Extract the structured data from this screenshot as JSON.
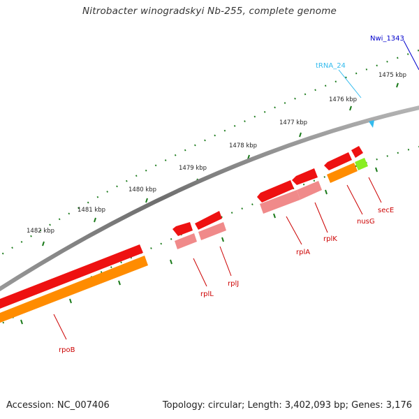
{
  "title": "Nitrobacter winogradskyi Nb-255, complete genome",
  "footer": {
    "accession": "Accession: NC_007406",
    "summary": "Topology: circular; Length: 3,402,093 bp; Genes: 3,176"
  },
  "colors": {
    "backbone": "#8a8a8a",
    "cds": "#ee1111",
    "cds_light": "#f08a8a",
    "gene": "#ff8c00",
    "gene_green": "#88ee22",
    "tick": "#1a7a1a",
    "gene_label": "#cc0000",
    "trna": "#33bbee",
    "other": "#0000cc"
  },
  "scale": {
    "ticks_kbp": [
      {
        "label": "1482 kbp",
        "kbp": 1482
      },
      {
        "label": "1481 kbp",
        "kbp": 1481
      },
      {
        "label": "1480 kbp",
        "kbp": 1480
      },
      {
        "label": "1479 kbp",
        "kbp": 1479
      },
      {
        "label": "1478 kbp",
        "kbp": 1478
      },
      {
        "label": "1477 kbp",
        "kbp": 1477
      },
      {
        "label": "1476 kbp",
        "kbp": 1476
      },
      {
        "label": "1475 kbp",
        "kbp": 1475
      }
    ]
  },
  "features": {
    "genes": [
      {
        "label": "rpoB"
      },
      {
        "label": "rplL"
      },
      {
        "label": "rplJ"
      },
      {
        "label": "rplA"
      },
      {
        "label": "rplK"
      },
      {
        "label": "nusG"
      },
      {
        "label": "secE"
      }
    ],
    "trna": {
      "label": "tRNA_24"
    },
    "other": {
      "label": "Nwi_1343"
    }
  }
}
